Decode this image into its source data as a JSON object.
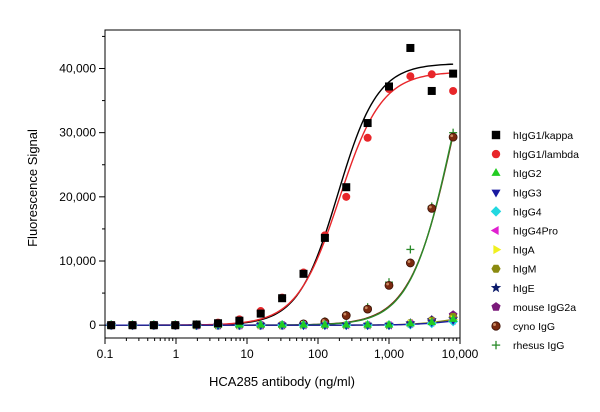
{
  "chart_data": {
    "type": "scatter",
    "title": "",
    "xlabel": "HCA285 antibody (ng/ml)",
    "ylabel": "Fluorescence Signal",
    "xscale": "log",
    "xlim": [
      0.1,
      10000
    ],
    "ylim": [
      -2000,
      46000
    ],
    "x_ticks": [
      0.1,
      1,
      10,
      100,
      1000,
      10000
    ],
    "x_tick_labels": [
      "0.1",
      "1",
      "10",
      "100",
      "1,000",
      "10,000"
    ],
    "y_ticks": [
      0,
      10000,
      20000,
      30000,
      40000
    ],
    "y_tick_labels": [
      "0",
      "10,000",
      "20,000",
      "30,000",
      "40,000"
    ],
    "grid": false,
    "legend_position": "right",
    "x": [
      0.122,
      0.244,
      0.488,
      0.977,
      1.95,
      3.91,
      7.81,
      15.6,
      31.25,
      62.5,
      125,
      250,
      500,
      1000,
      2000,
      4000,
      8000
    ],
    "series": [
      {
        "name": "hIgG1/kappa",
        "marker": "square",
        "color": "#000000",
        "values": [
          0,
          0,
          0,
          0,
          100,
          300,
          700,
          1800,
          4200,
          8000,
          13600,
          21500,
          31500,
          37200,
          43200,
          36500,
          39200
        ]
      },
      {
        "name": "hIgG1/lambda",
        "marker": "circle",
        "color": "#e8262a",
        "values": [
          0,
          0,
          0,
          0,
          100,
          400,
          900,
          2200,
          4300,
          8200,
          14000,
          20000,
          29200,
          36800,
          38800,
          39100,
          36500
        ]
      },
      {
        "name": "hIgG2",
        "marker": "triangle-up",
        "color": "#22cc22",
        "values": [
          0,
          0,
          0,
          0,
          0,
          0,
          0,
          0,
          0,
          0,
          0,
          0,
          0,
          0,
          200,
          400,
          900
        ]
      },
      {
        "name": "hIgG3",
        "marker": "triangle-down",
        "color": "#1a1aa0",
        "values": [
          0,
          0,
          0,
          0,
          0,
          0,
          0,
          0,
          0,
          0,
          0,
          0,
          0,
          0,
          200,
          500,
          800
        ]
      },
      {
        "name": "hIgG4",
        "marker": "diamond",
        "color": "#22d8e0",
        "values": [
          0,
          0,
          0,
          0,
          0,
          0,
          0,
          0,
          0,
          0,
          0,
          0,
          0,
          0,
          100,
          300,
          600
        ]
      },
      {
        "name": "hIgG4Pro",
        "marker": "triangle-left",
        "color": "#e020d0",
        "values": [
          0,
          0,
          0,
          0,
          0,
          0,
          0,
          0,
          0,
          0,
          0,
          0,
          0,
          0,
          200,
          400,
          700
        ]
      },
      {
        "name": "hIgA",
        "marker": "triangle-right",
        "color": "#f0f020",
        "values": [
          0,
          0,
          0,
          0,
          0,
          0,
          0,
          0,
          0,
          0,
          0,
          0,
          0,
          0,
          200,
          500,
          900
        ]
      },
      {
        "name": "hIgM",
        "marker": "hexagon",
        "color": "#8a8a10",
        "values": [
          0,
          0,
          0,
          0,
          0,
          0,
          0,
          0,
          0,
          0,
          0,
          0,
          0,
          0,
          300,
          700,
          1300
        ]
      },
      {
        "name": "hIgE",
        "marker": "star",
        "color": "#0b1a6a",
        "values": [
          0,
          0,
          0,
          0,
          0,
          0,
          0,
          0,
          0,
          0,
          0,
          0,
          0,
          0,
          300,
          800,
          1000
        ]
      },
      {
        "name": "mouse IgG2a",
        "marker": "pentagon",
        "color": "#7a1a7a",
        "values": [
          0,
          0,
          0,
          0,
          0,
          0,
          0,
          0,
          0,
          0,
          0,
          0,
          0,
          0,
          300,
          800,
          1600
        ]
      },
      {
        "name": "cyno IgG",
        "marker": "sphere",
        "color": "#7a2a10",
        "values": [
          0,
          0,
          0,
          0,
          0,
          0,
          0,
          0,
          0,
          200,
          500,
          1500,
          2500,
          6200,
          9700,
          18200,
          29300
        ]
      },
      {
        "name": "rhesus IgG",
        "marker": "plus",
        "color": "#2a8a2a",
        "values": [
          0,
          0,
          0,
          0,
          0,
          0,
          0,
          0,
          0,
          200,
          600,
          1600,
          2800,
          6700,
          11800,
          18500,
          30000
        ]
      }
    ],
    "fit_curves": [
      {
        "series": "hIgG1/kappa",
        "color": "#000000",
        "bottom": 0,
        "top": 40800,
        "ec50": 190,
        "hill": 1.55
      },
      {
        "series": "hIgG1/lambda",
        "color": "#e8262a",
        "bottom": 0,
        "top": 39500,
        "ec50": 200,
        "hill": 1.45
      },
      {
        "series": "cyno IgG",
        "color": "#7a2a10",
        "bottom": 0,
        "top": 62000,
        "ec50": 8500,
        "hill": 1.4
      },
      {
        "series": "rhesus IgG",
        "color": "#2a8a2a",
        "bottom": 0,
        "top": 60000,
        "ec50": 8000,
        "hill": 1.45
      },
      {
        "series": "hIgM",
        "color": "#8a8a10",
        "bottom": 0,
        "top": 2000,
        "ec50": 9000,
        "hill": 1.6
      },
      {
        "series": "hIgG3",
        "color": "#1a1aa0",
        "bottom": 0,
        "top": 1300,
        "ec50": 8000,
        "hill": 1.6
      }
    ]
  }
}
